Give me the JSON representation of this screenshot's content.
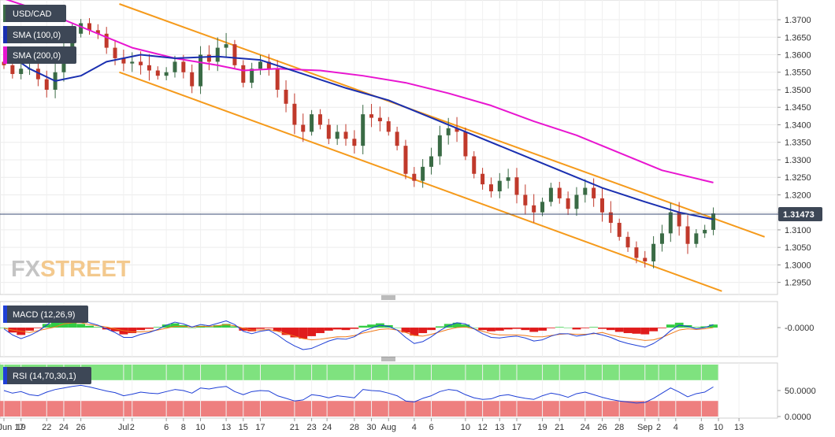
{
  "symbol": "USD/CAD",
  "watermark": {
    "fx": "FX",
    "street": "STREET"
  },
  "colors": {
    "up": "#3a6b45",
    "down": "#c0392b",
    "sma100": "#1a2fb0",
    "sma200": "#e815d0",
    "channel": "#f59a1b",
    "price_line": "#3a4b73",
    "macd": "#1f3fd6",
    "signal": "#f07a1b",
    "hist_pos": "#33cc44",
    "hist_neg": "#e01c1c",
    "rsi_line": "#1f3fd6",
    "rsi_over": "#7fe27f",
    "rsi_under": "#ee7f7f",
    "label_bg": "#3d4756"
  },
  "legend": {
    "sma100": "SMA (100,0)",
    "sma200": "SMA (200,0)",
    "macd": "MACD (12,26,9)",
    "rsi": "RSI (14,70,30,1)"
  },
  "chart_data": [
    {
      "type": "candlestick",
      "panel": "price",
      "title": "USD/CAD",
      "ylim": [
        1.292,
        1.3745
      ],
      "y_ticks": [
        "1.3700",
        "1.3650",
        "1.3600",
        "1.3550",
        "1.3500",
        "1.3450",
        "1.3400",
        "1.3350",
        "1.3300",
        "1.3250",
        "1.3200",
        "1.3150",
        "1.3100",
        "1.3050",
        "1.3000",
        "1.2950"
      ],
      "last_price": "1.31473",
      "x_ticks": [
        {
          "label": "Jun 17",
          "day": 0
        },
        {
          "label": "19",
          "day": 2
        },
        {
          "label": "22",
          "day": 5
        },
        {
          "label": "24",
          "day": 7
        },
        {
          "label": "26",
          "day": 9
        },
        {
          "label": "Jul",
          "day": 14
        },
        {
          "label": "2",
          "day": 15
        },
        {
          "label": "6",
          "day": 19
        },
        {
          "label": "8",
          "day": 21
        },
        {
          "label": "10",
          "day": 23
        },
        {
          "label": "13",
          "day": 26
        },
        {
          "label": "15",
          "day": 28
        },
        {
          "label": "17",
          "day": 30
        },
        {
          "label": "21",
          "day": 34
        },
        {
          "label": "23",
          "day": 36
        },
        {
          "label": "24",
          "day": 37.8
        },
        {
          "label": "28",
          "day": 41
        },
        {
          "label": "30",
          "day": 43
        },
        {
          "label": "Aug",
          "day": 45
        },
        {
          "label": "4",
          "day": 48
        },
        {
          "label": "6",
          "day": 50
        },
        {
          "label": "10",
          "day": 54
        },
        {
          "label": "12",
          "day": 56
        },
        {
          "label": "13",
          "day": 58
        },
        {
          "label": "17",
          "day": 60
        },
        {
          "label": "19",
          "day": 63
        },
        {
          "label": "21",
          "day": 65
        },
        {
          "label": "24",
          "day": 68
        },
        {
          "label": "26",
          "day": 70
        },
        {
          "label": "28",
          "day": 72
        },
        {
          "label": "Sep",
          "day": 75
        },
        {
          "label": "2",
          "day": 76.6
        },
        {
          "label": "4",
          "day": 78.6
        },
        {
          "label": "8",
          "day": 81.6
        },
        {
          "label": "10",
          "day": 83.6
        },
        {
          "label": "13",
          "day": 86
        }
      ],
      "closes": [
        {
          "day": 0,
          "close": 1.357
        },
        {
          "day": 1,
          "close": 1.3545
        },
        {
          "day": 2,
          "close": 1.356
        },
        {
          "day": 3,
          "close": 1.356
        },
        {
          "day": 4,
          "close": 1.353
        },
        {
          "day": 5,
          "close": 1.35
        },
        {
          "day": 6,
          "close": 1.355
        },
        {
          "day": 7,
          "close": 1.362
        },
        {
          "day": 8,
          "close": 1.366
        },
        {
          "day": 9,
          "close": 1.369
        },
        {
          "day": 10,
          "close": 1.367
        },
        {
          "day": 11,
          "close": 1.366
        },
        {
          "day": 12,
          "close": 1.362
        },
        {
          "day": 13,
          "close": 1.359
        },
        {
          "day": 14,
          "close": 1.3575
        },
        {
          "day": 15,
          "close": 1.358
        },
        {
          "day": 16,
          "close": 1.357
        },
        {
          "day": 17,
          "close": 1.3555
        },
        {
          "day": 18,
          "close": 1.354
        },
        {
          "day": 19,
          "close": 1.355
        },
        {
          "day": 20,
          "close": 1.358
        },
        {
          "day": 21,
          "close": 1.355
        },
        {
          "day": 22,
          "close": 1.351
        },
        {
          "day": 23,
          "close": 1.36
        },
        {
          "day": 24,
          "close": 1.358
        },
        {
          "day": 25,
          "close": 1.362
        },
        {
          "day": 26,
          "close": 1.363
        },
        {
          "day": 27,
          "close": 1.357
        },
        {
          "day": 28,
          "close": 1.352
        },
        {
          "day": 29,
          "close": 1.356
        },
        {
          "day": 30,
          "close": 1.358
        },
        {
          "day": 31,
          "close": 1.356
        },
        {
          "day": 32,
          "close": 1.35
        },
        {
          "day": 33,
          "close": 1.346
        },
        {
          "day": 34,
          "close": 1.34
        },
        {
          "day": 35,
          "close": 1.338
        },
        {
          "day": 36,
          "close": 1.343
        },
        {
          "day": 37,
          "close": 1.34
        },
        {
          "day": 38,
          "close": 1.336
        },
        {
          "day": 39,
          "close": 1.338
        },
        {
          "day": 40,
          "close": 1.336
        },
        {
          "day": 41,
          "close": 1.334
        },
        {
          "day": 42,
          "close": 1.343
        },
        {
          "day": 43,
          "close": 1.342
        },
        {
          "day": 44,
          "close": 1.341
        },
        {
          "day": 45,
          "close": 1.338
        },
        {
          "day": 46,
          "close": 1.334
        },
        {
          "day": 47,
          "close": 1.326
        },
        {
          "day": 48,
          "close": 1.324
        },
        {
          "day": 49,
          "close": 1.328
        },
        {
          "day": 50,
          "close": 1.331
        },
        {
          "day": 51,
          "close": 1.337
        },
        {
          "day": 52,
          "close": 1.339
        },
        {
          "day": 53,
          "close": 1.338
        },
        {
          "day": 54,
          "close": 1.331
        },
        {
          "day": 55,
          "close": 1.326
        },
        {
          "day": 56,
          "close": 1.323
        },
        {
          "day": 57,
          "close": 1.321
        },
        {
          "day": 58,
          "close": 1.324
        },
        {
          "day": 59,
          "close": 1.325
        },
        {
          "day": 60,
          "close": 1.32
        },
        {
          "day": 61,
          "close": 1.317
        },
        {
          "day": 62,
          "close": 1.315
        },
        {
          "day": 63,
          "close": 1.318
        },
        {
          "day": 64,
          "close": 1.322
        },
        {
          "day": 65,
          "close": 1.319
        },
        {
          "day": 66,
          "close": 1.316
        },
        {
          "day": 67,
          "close": 1.32
        },
        {
          "day": 68,
          "close": 1.322
        },
        {
          "day": 69,
          "close": 1.319
        },
        {
          "day": 70,
          "close": 1.315
        },
        {
          "day": 71,
          "close": 1.312
        },
        {
          "day": 72,
          "close": 1.308
        },
        {
          "day": 73,
          "close": 1.305
        },
        {
          "day": 74,
          "close": 1.302
        },
        {
          "day": 75,
          "close": 1.301
        },
        {
          "day": 76,
          "close": 1.306
        },
        {
          "day": 77,
          "close": 1.309
        },
        {
          "day": 78,
          "close": 1.315
        },
        {
          "day": 79,
          "close": 1.311
        },
        {
          "day": 80,
          "close": 1.306
        },
        {
          "day": 81,
          "close": 1.309
        },
        {
          "day": 82,
          "close": 1.31
        },
        {
          "day": 83,
          "close": 1.3147
        }
      ],
      "sma100": [
        {
          "day": 0,
          "value": 1.361
        },
        {
          "day": 3,
          "value": 1.356
        },
        {
          "day": 6,
          "value": 1.3525
        },
        {
          "day": 9,
          "value": 1.354
        },
        {
          "day": 12,
          "value": 1.358
        },
        {
          "day": 16,
          "value": 1.36
        },
        {
          "day": 20,
          "value": 1.359
        },
        {
          "day": 25,
          "value": 1.3595
        },
        {
          "day": 30,
          "value": 1.3585
        },
        {
          "day": 35,
          "value": 1.3545
        },
        {
          "day": 40,
          "value": 1.3505
        },
        {
          "day": 45,
          "value": 1.347
        },
        {
          "day": 50,
          "value": 1.342
        },
        {
          "day": 55,
          "value": 1.337
        },
        {
          "day": 60,
          "value": 1.332
        },
        {
          "day": 65,
          "value": 1.327
        },
        {
          "day": 70,
          "value": 1.322
        },
        {
          "day": 75,
          "value": 1.318
        },
        {
          "day": 79,
          "value": 1.315
        },
        {
          "day": 83,
          "value": 1.313
        }
      ],
      "sma200": [
        {
          "day": 0,
          "value": 1.376
        },
        {
          "day": 5,
          "value": 1.372
        },
        {
          "day": 10,
          "value": 1.367
        },
        {
          "day": 15,
          "value": 1.362
        },
        {
          "day": 20,
          "value": 1.359
        },
        {
          "day": 25,
          "value": 1.357
        },
        {
          "day": 28,
          "value": 1.3555
        },
        {
          "day": 32,
          "value": 1.356
        },
        {
          "day": 37,
          "value": 1.3555
        },
        {
          "day": 42,
          "value": 1.354
        },
        {
          "day": 47,
          "value": 1.352
        },
        {
          "day": 52,
          "value": 1.349
        },
        {
          "day": 57,
          "value": 1.3455
        },
        {
          "day": 62,
          "value": 1.341
        },
        {
          "day": 67,
          "value": 1.337
        },
        {
          "day": 72,
          "value": 1.332
        },
        {
          "day": 77,
          "value": 1.327
        },
        {
          "day": 83,
          "value": 1.3235
        }
      ],
      "channel_lines": [
        {
          "from": {
            "day": 13.5,
            "price": 1.3745
          },
          "to": {
            "day": 89,
            "price": 1.308
          }
        },
        {
          "from": {
            "day": 13.5,
            "price": 1.355
          },
          "to": {
            "day": 84,
            "price": 1.2925
          }
        }
      ]
    },
    {
      "type": "histogram+line",
      "panel": "macd",
      "title": "MACD (12,26,9)",
      "y_ticks": [
        "-0.0000"
      ],
      "ylim": [
        -0.0045,
        0.004
      ],
      "histogram": [
        0.0,
        -0.0008,
        -0.0012,
        -0.0005,
        -0.0001,
        0.0006,
        0.0014,
        0.0016,
        0.0012,
        0.0006,
        0.0003,
        0.0001,
        -0.0003,
        -0.0006,
        -0.0011,
        -0.0009,
        -0.0004,
        -0.0002,
        0.0001,
        0.0005,
        0.0007,
        0.0004,
        0.0,
        0.0003,
        0.0001,
        0.0004,
        0.0006,
        0.0002,
        -0.0005,
        -0.0006,
        -0.0002,
        -0.0001,
        -0.0006,
        -0.0012,
        -0.0016,
        -0.0018,
        -0.0014,
        -0.0009,
        -0.0005,
        -0.0003,
        -0.0004,
        -0.0002,
        0.0003,
        0.0005,
        0.0007,
        0.0004,
        0.0,
        -0.0008,
        -0.0013,
        -0.0009,
        -0.0004,
        0.0002,
        0.0006,
        0.0008,
        0.0005,
        0.0,
        -0.0004,
        -0.0006,
        -0.0005,
        -0.0003,
        -0.0002,
        -0.0004,
        -0.0007,
        -0.0005,
        -0.0001,
        0.0001,
        0.0,
        -0.0003,
        -0.0001,
        0.0001,
        -0.0002,
        -0.0004,
        -0.0007,
        -0.0009,
        -0.001,
        -0.0011,
        -0.0006,
        -0.0001,
        0.0005,
        0.0008,
        0.0004,
        0.0001,
        0.0002,
        0.0005
      ],
      "macd_line": [
        -0.0002,
        -0.0012,
        -0.0018,
        -0.0013,
        -0.0006,
        0.0004,
        0.0015,
        0.0022,
        0.002,
        0.0014,
        0.0008,
        0.0004,
        -0.0002,
        -0.0008,
        -0.0016,
        -0.0016,
        -0.0011,
        -0.0008,
        -0.0003,
        0.0004,
        0.0009,
        0.0006,
        0.0001,
        0.0005,
        0.0003,
        0.0007,
        0.0011,
        0.0005,
        -0.0006,
        -0.001,
        -0.0006,
        -0.0004,
        -0.0012,
        -0.0022,
        -0.003,
        -0.0036,
        -0.0034,
        -0.0028,
        -0.0022,
        -0.0018,
        -0.0019,
        -0.0015,
        -0.0006,
        -0.0001,
        0.0004,
        0.0002,
        -0.0004,
        -0.0016,
        -0.0026,
        -0.0023,
        -0.0015,
        -0.0005,
        0.0003,
        0.0008,
        0.0006,
        -0.0002,
        -0.001,
        -0.0016,
        -0.0017,
        -0.0015,
        -0.0014,
        -0.0017,
        -0.0022,
        -0.002,
        -0.0014,
        -0.001,
        -0.001,
        -0.0014,
        -0.0012,
        -0.0009,
        -0.0012,
        -0.0016,
        -0.0022,
        -0.0026,
        -0.0029,
        -0.0032,
        -0.0026,
        -0.0017,
        -0.0005,
        0.0004,
        0.0002,
        -0.0002,
        0.0,
        0.0005
      ],
      "signal_line": [
        -0.0001,
        -0.0004,
        -0.0006,
        -0.0008,
        -0.0005,
        -0.0002,
        0.0001,
        0.0006,
        0.0008,
        0.0008,
        0.0005,
        0.0003,
        0.0001,
        -0.0002,
        -0.0005,
        -0.0007,
        -0.0007,
        -0.0006,
        -0.0004,
        -0.0001,
        0.0002,
        0.0002,
        0.0001,
        0.0002,
        0.0002,
        0.0003,
        0.0005,
        0.0003,
        -0.0001,
        -0.0004,
        -0.0004,
        -0.0003,
        -0.0006,
        -0.001,
        -0.0014,
        -0.0018,
        -0.002,
        -0.0019,
        -0.0017,
        -0.0015,
        -0.0015,
        -0.0013,
        -0.0009,
        -0.0006,
        -0.0003,
        -0.0002,
        -0.0004,
        -0.0008,
        -0.0013,
        -0.0014,
        -0.0011,
        -0.0007,
        -0.0003,
        0.0,
        0.0001,
        -0.0002,
        -0.0006,
        -0.001,
        -0.0012,
        -0.0012,
        -0.0012,
        -0.0013,
        -0.0015,
        -0.0015,
        -0.0013,
        -0.0011,
        -0.001,
        -0.0011,
        -0.0011,
        -0.001,
        -0.0008,
        -0.0012,
        -0.0015,
        -0.0017,
        -0.0019,
        -0.0021,
        -0.002,
        -0.0016,
        -0.001,
        -0.0004,
        -0.0002,
        -0.0003,
        -0.0002,
        0.0
      ]
    },
    {
      "type": "line",
      "panel": "rsi",
      "title": "RSI (14,70,30,1)",
      "y_ticks": [
        "50.0000",
        "0.0000"
      ],
      "ylim": [
        0,
        100
      ],
      "overbought_band": [
        70,
        100
      ],
      "oversold_band": [
        0,
        30
      ],
      "values": [
        50,
        45,
        48,
        42,
        40,
        47,
        52,
        55,
        58,
        60,
        57,
        53,
        49,
        46,
        40,
        43,
        47,
        45,
        44,
        48,
        52,
        50,
        45,
        55,
        53,
        56,
        58,
        48,
        42,
        48,
        50,
        49,
        40,
        35,
        30,
        32,
        42,
        40,
        36,
        40,
        38,
        36,
        52,
        50,
        49,
        45,
        40,
        30,
        28,
        35,
        40,
        48,
        52,
        50,
        42,
        36,
        33,
        34,
        40,
        42,
        38,
        35,
        33,
        40,
        45,
        42,
        37,
        44,
        47,
        42,
        37,
        33,
        30,
        28,
        26,
        27,
        35,
        45,
        55,
        47,
        38,
        44,
        47,
        57
      ]
    }
  ]
}
